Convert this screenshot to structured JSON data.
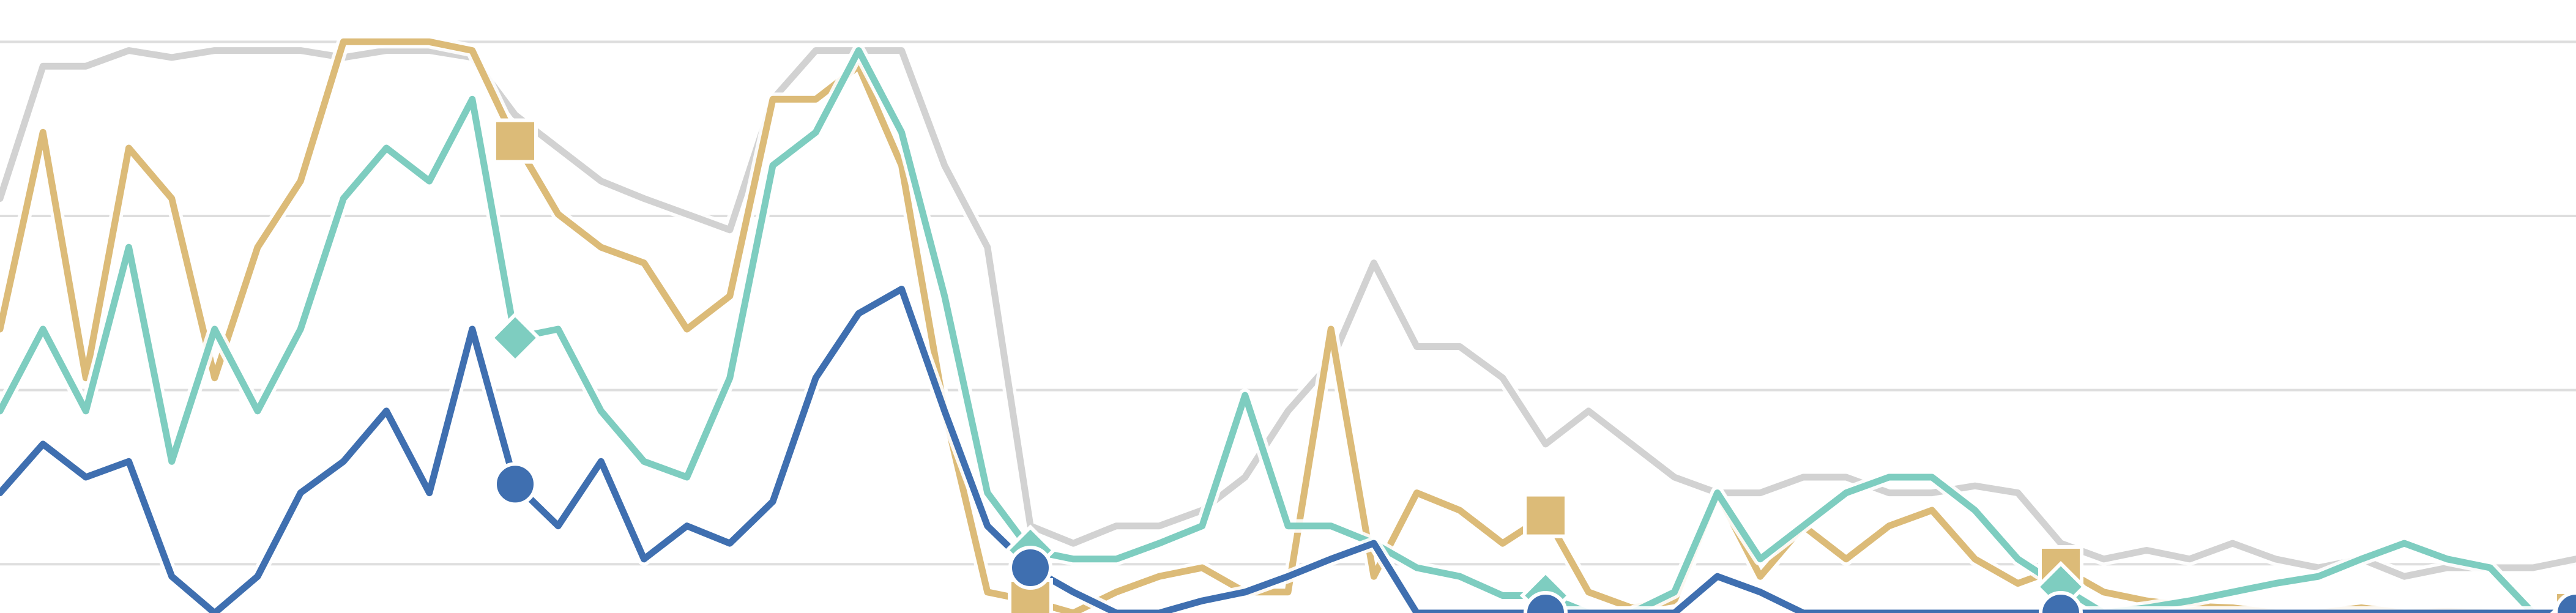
{
  "chart_data": {
    "type": "line",
    "x": [
      0,
      1,
      2,
      3,
      4,
      5,
      6,
      7,
      8,
      9,
      10,
      11,
      12,
      13,
      14,
      15,
      16,
      17,
      18,
      19,
      20,
      21,
      22,
      23,
      24,
      25,
      26,
      27,
      28,
      29,
      30,
      31,
      32,
      33,
      34,
      35,
      36,
      37,
      38,
      39,
      40,
      41,
      42,
      43,
      44,
      45,
      46,
      47,
      48,
      49,
      50,
      51,
      52,
      53,
      54,
      55,
      56,
      57,
      58,
      59,
      60
    ],
    "xlim": [
      0,
      60
    ],
    "ylim": [
      0.72,
      4.24
    ],
    "yticks": [
      1,
      2,
      3,
      4
    ],
    "grid": true,
    "series": [
      {
        "color": "#d2d2d2",
        "values": [
          3.1,
          3.86,
          3.86,
          3.95,
          3.91,
          3.95,
          3.95,
          3.95,
          3.91,
          3.95,
          3.95,
          3.91,
          3.58,
          3.39,
          3.2,
          3.1,
          3.01,
          2.92,
          3.67,
          3.95,
          3.95,
          3.95,
          3.29,
          2.82,
          1.22,
          1.12,
          1.22,
          1.22,
          1.31,
          1.5,
          1.88,
          2.16,
          2.73,
          2.25,
          2.25,
          2.07,
          1.69,
          1.88,
          1.69,
          1.5,
          1.41,
          1.41,
          1.5,
          1.5,
          1.41,
          1.41,
          1.45,
          1.41,
          1.12,
          1.03,
          1.08,
          1.03,
          1.12,
          1.03,
          0.98,
          1.03,
          0.93,
          0.98,
          0.98,
          0.98,
          1.03
        ]
      },
      {
        "color": "#dcbb78",
        "marker": "square",
        "values": [
          2.35,
          3.48,
          2.07,
          3.39,
          3.1,
          2.07,
          2.82,
          3.2,
          4.0,
          4.0,
          4.0,
          3.95,
          3.43,
          3.01,
          2.82,
          2.73,
          2.35,
          2.54,
          3.67,
          3.67,
          3.86,
          3.29,
          1.88,
          0.84,
          0.79,
          0.72,
          0.84,
          0.93,
          0.98,
          0.84,
          0.84,
          2.35,
          0.93,
          1.41,
          1.31,
          1.12,
          1.28,
          0.84,
          0.75,
          0.79,
          1.41,
          0.93,
          1.22,
          1.03,
          1.22,
          1.31,
          1.03,
          0.89,
          0.98,
          0.84,
          0.79,
          0.76,
          0.75,
          0.72,
          0.72,
          0.75,
          0.72,
          0.73,
          0.72,
          0.72,
          0.72
        ]
      },
      {
        "color": "#7ecdc0",
        "marker": "diamond",
        "values": [
          1.88,
          2.35,
          1.88,
          2.82,
          1.59,
          2.35,
          1.88,
          2.35,
          3.1,
          3.39,
          3.2,
          3.67,
          2.3,
          2.35,
          1.88,
          1.59,
          1.5,
          2.07,
          3.29,
          3.48,
          3.95,
          3.48,
          2.54,
          1.41,
          1.08,
          1.03,
          1.03,
          1.12,
          1.22,
          1.97,
          1.22,
          1.22,
          1.12,
          0.98,
          0.93,
          0.82,
          0.82,
          0.72,
          0.72,
          0.84,
          1.41,
          1.03,
          1.22,
          1.41,
          1.5,
          1.5,
          1.31,
          1.03,
          0.87,
          0.72,
          0.75,
          0.79,
          0.84,
          0.89,
          0.93,
          1.03,
          1.12,
          1.03,
          0.98,
          0.72,
          0.72
        ]
      },
      {
        "color": "#3f6fb0",
        "marker": "circle",
        "values": [
          1.41,
          1.69,
          1.5,
          1.59,
          0.93,
          0.72,
          0.93,
          1.41,
          1.59,
          1.88,
          1.41,
          2.35,
          1.46,
          1.22,
          1.59,
          1.03,
          1.22,
          1.12,
          1.36,
          2.07,
          2.44,
          2.58,
          1.88,
          1.22,
          0.98,
          0.84,
          0.72,
          0.72,
          0.79,
          0.84,
          0.93,
          1.03,
          1.12,
          0.72,
          0.72,
          0.72,
          0.72,
          0.72,
          0.72,
          0.72,
          0.93,
          0.84,
          0.72,
          0.72,
          0.72,
          0.72,
          0.72,
          0.72,
          0.72,
          0.72,
          0.72,
          0.72,
          0.72,
          0.72,
          0.72,
          0.72,
          0.72,
          0.72,
          0.72,
          0.72,
          0.72
        ]
      }
    ]
  }
}
